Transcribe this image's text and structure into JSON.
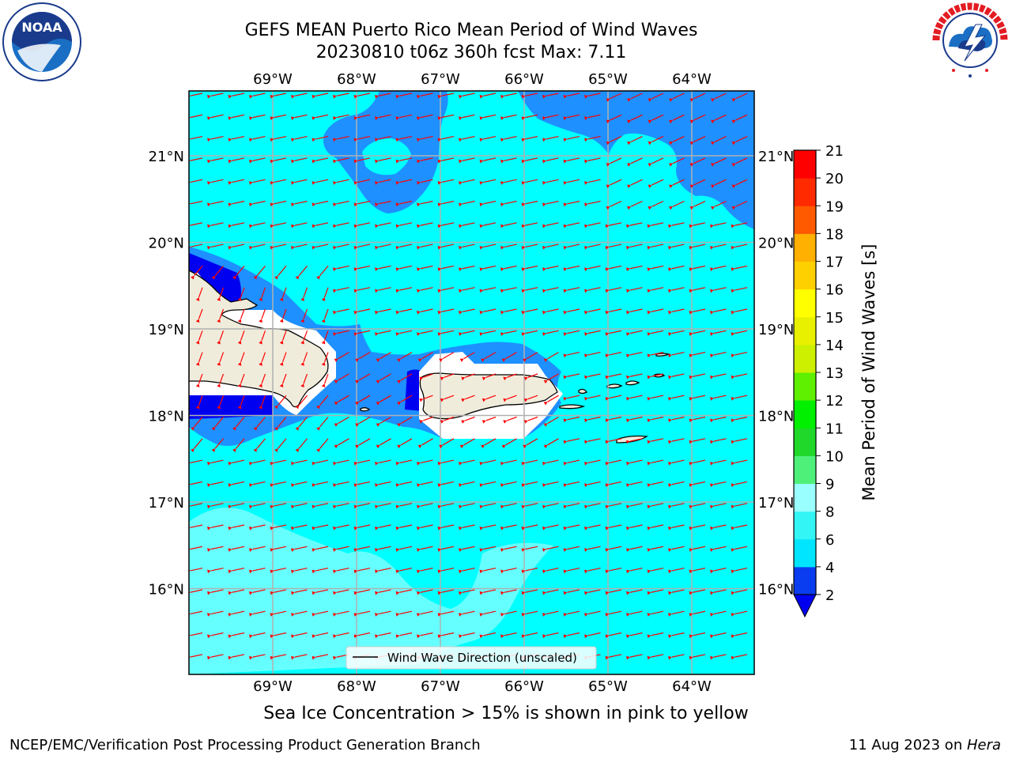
{
  "title_line1": "GEFS MEAN Puerto Rico Mean Period of Wind Waves",
  "title_line2": "20230810 t06z 360h fcst   Max: 7.11",
  "logos": {
    "noaa_text": "NOAA",
    "noaa_ring": "NATIONAL OCEANIC AND ATMOSPHERIC ADMINISTRATION · U.S. DEPARTMENT OF COMMERCE",
    "nws_ring": "NATIONAL WEATHER SERVICE"
  },
  "lon_labels": [
    "69°W",
    "68°W",
    "67°W",
    "66°W",
    "65°W",
    "64°W"
  ],
  "lat_labels": [
    "21°N",
    "20°N",
    "19°N",
    "18°N",
    "17°N",
    "16°N"
  ],
  "legend_label": "Wind Wave Direction (unscaled)",
  "colorbar": {
    "label": "Mean Period of Wind Waves [s]",
    "ticks": [
      "2",
      "4",
      "6",
      "8",
      "9",
      "10",
      "11",
      "12",
      "13",
      "14",
      "15",
      "16",
      "17",
      "18",
      "19",
      "20",
      "21"
    ],
    "colors": [
      "#0a3cf0",
      "#00e5ff",
      "#33f5f5",
      "#66ffff",
      "#99ffff",
      "#4ff07a",
      "#1fd82a",
      "#00f000",
      "#5ef000",
      "#9af000",
      "#ccf000",
      "#e8f000",
      "#ffff00",
      "#ffd000",
      "#ffb000",
      "#ff8800",
      "#ff5a00",
      "#ff2a00",
      "#ff0000"
    ],
    "extend_color": "#0000f0"
  },
  "sea_ice_note": "Sea Ice Concentration > 15% is shown in pink to yellow",
  "footer_left": "NCEP/EMC/Verification Post Processing Product Generation Branch",
  "footer_right_prefix": "11 Aug 2023 on ",
  "footer_right_host": "Hera",
  "colors": {
    "ocean_base": "#00ffff",
    "ocean_dark": "#1e90ff",
    "ocean_deep": "#0000f0",
    "ocean_light": "#66ffff",
    "land": "#f0ecdc",
    "arrow": "#ff0000",
    "grid": "#b0b0b0"
  }
}
